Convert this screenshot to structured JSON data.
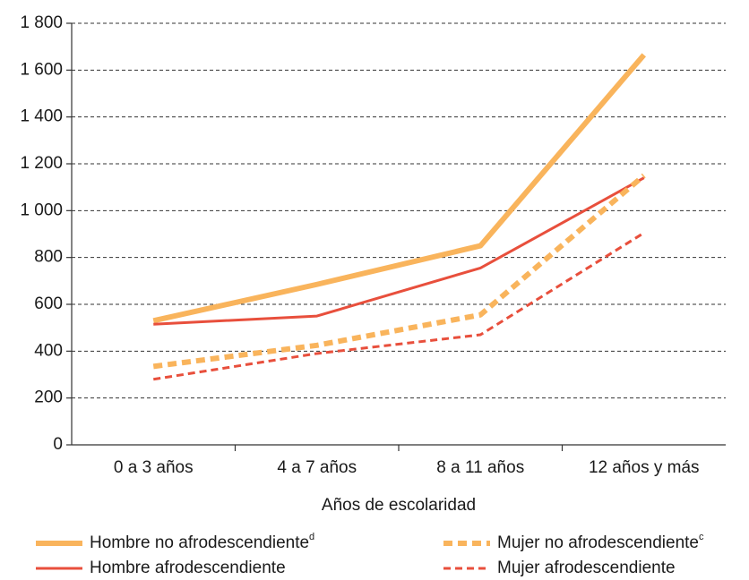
{
  "chart_data": {
    "type": "line",
    "x_label": "Años de escolaridad",
    "categories": [
      "0 a 3 años",
      "4 a 7 años",
      "8 a 11 años",
      "12 años y más"
    ],
    "series": [
      {
        "name": "Hombre no afrodescendiente",
        "footnote": "d",
        "color": "#f9b45c",
        "style": "solid",
        "linewidth": 6,
        "values": [
          530,
          685,
          850,
          1665
        ]
      },
      {
        "name": "Hombre afrodescendiente",
        "color": "#e84f3c",
        "style": "solid",
        "linewidth": 3,
        "values": [
          515,
          550,
          755,
          1140
        ]
      },
      {
        "name": "Mujer no afrodescendiente",
        "footnote": "c",
        "color": "#f9b45c",
        "style": "dashed",
        "linewidth": 6,
        "values": [
          335,
          425,
          555,
          1150
        ]
      },
      {
        "name": "Mujer afrodescendiente",
        "color": "#e84f3c",
        "style": "dashed",
        "linewidth": 3,
        "values": [
          280,
          390,
          470,
          905
        ]
      }
    ],
    "ylim": [
      0,
      1800
    ],
    "yticks": [
      0,
      200,
      400,
      600,
      800,
      {
        "value": 1000,
        "label": "1 000"
      },
      {
        "value": 1200,
        "label": "1 200"
      },
      {
        "value": 1400,
        "label": "1 400"
      },
      {
        "value": 1600,
        "label": "1 600"
      },
      {
        "value": 1800,
        "label": "1 800"
      }
    ],
    "grid": true,
    "legend": "bottom"
  }
}
